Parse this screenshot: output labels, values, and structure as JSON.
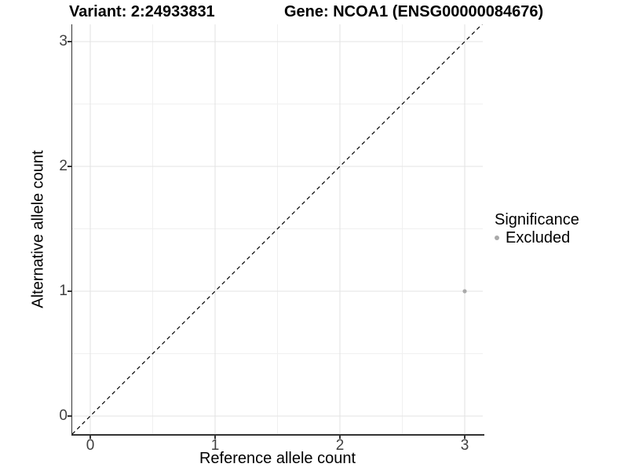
{
  "titles": {
    "left": "Variant: 2:24933831",
    "right": "Gene: NCOA1 (ENSG00000084676)"
  },
  "chart_data": {
    "type": "scatter",
    "title_left": "Variant: 2:24933831",
    "title_right": "Gene: NCOA1 (ENSG00000084676)",
    "xlabel": "Reference allele count",
    "ylabel": "Alternative allele count",
    "x_ticks": [
      0,
      1,
      2,
      3
    ],
    "y_ticks": [
      0,
      1,
      2,
      3
    ],
    "xlim": [
      -0.145,
      3.145
    ],
    "ylim": [
      -0.145,
      3.145
    ],
    "grid": "major+minor",
    "points": [
      {
        "x": 3,
        "y": 1,
        "significance": "Excluded"
      }
    ],
    "reference_line": {
      "kind": "identity",
      "intercept": 0,
      "slope": 1,
      "style": "dashed"
    },
    "legend": {
      "title": "Significance",
      "position": "right",
      "entries": [
        {
          "label": "Excluded",
          "color": "#aaaaaa"
        }
      ]
    }
  },
  "colors": {
    "background": "#ffffff",
    "axis_line": "#333333",
    "grid_major": "#e3e3e3",
    "grid_minor": "#f0f0f0",
    "tick_text": "#404040",
    "reference_line": "#000000",
    "point_excluded": "#aaaaaa"
  }
}
